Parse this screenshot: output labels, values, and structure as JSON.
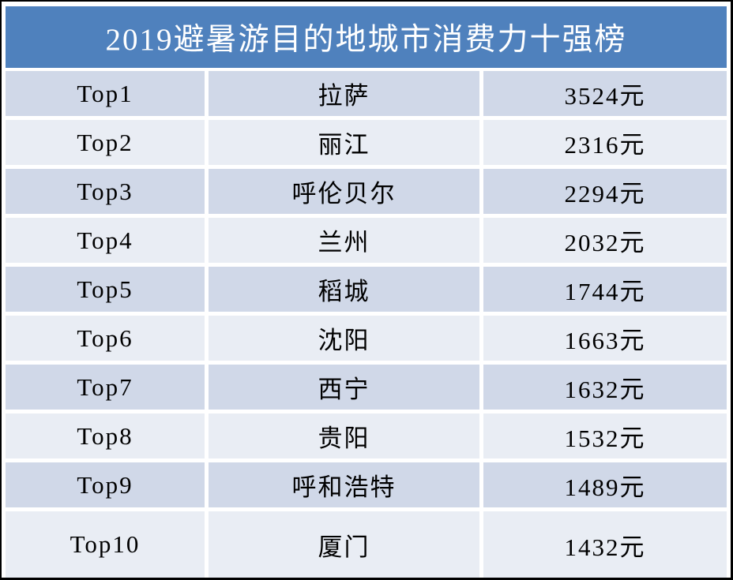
{
  "title": "2019避暑游目的地城市消费力十强榜",
  "colors": {
    "header_bg": "#4f81bd",
    "header_text": "#ffffff",
    "band_dark": "#d0d8e8",
    "band_light": "#e9edf4",
    "body_text": "#000000",
    "frame_border": "#000000"
  },
  "table": {
    "rows": [
      {
        "rank": "Top1",
        "city": "拉萨",
        "price": "3524元"
      },
      {
        "rank": "Top2",
        "city": "丽江",
        "price": "2316元"
      },
      {
        "rank": "Top3",
        "city": "呼伦贝尔",
        "price": "2294元"
      },
      {
        "rank": "Top4",
        "city": "兰州",
        "price": "2032元"
      },
      {
        "rank": "Top5",
        "city": "稻城",
        "price": "1744元"
      },
      {
        "rank": "Top6",
        "city": "沈阳",
        "price": "1663元"
      },
      {
        "rank": "Top7",
        "city": "西宁",
        "price": "1632元"
      },
      {
        "rank": "Top8",
        "city": "贵阳",
        "price": "1532元"
      },
      {
        "rank": "Top9",
        "city": "呼和浩特",
        "price": "1489元"
      },
      {
        "rank": "Top10",
        "city": "厦门",
        "price": "1432元"
      }
    ]
  },
  "chart_data": {
    "type": "table",
    "title": "2019避暑游目的地城市消费力十强榜",
    "categories": [
      "拉萨",
      "丽江",
      "呼伦贝尔",
      "兰州",
      "稻城",
      "沈阳",
      "西宁",
      "贵阳",
      "呼和浩特",
      "厦门"
    ],
    "ranks": [
      "Top1",
      "Top2",
      "Top3",
      "Top4",
      "Top5",
      "Top6",
      "Top7",
      "Top8",
      "Top9",
      "Top10"
    ],
    "values": [
      3524,
      2316,
      2294,
      2032,
      1744,
      1663,
      1632,
      1532,
      1489,
      1432
    ],
    "unit": "元",
    "legend_position": "none",
    "grid": false
  }
}
